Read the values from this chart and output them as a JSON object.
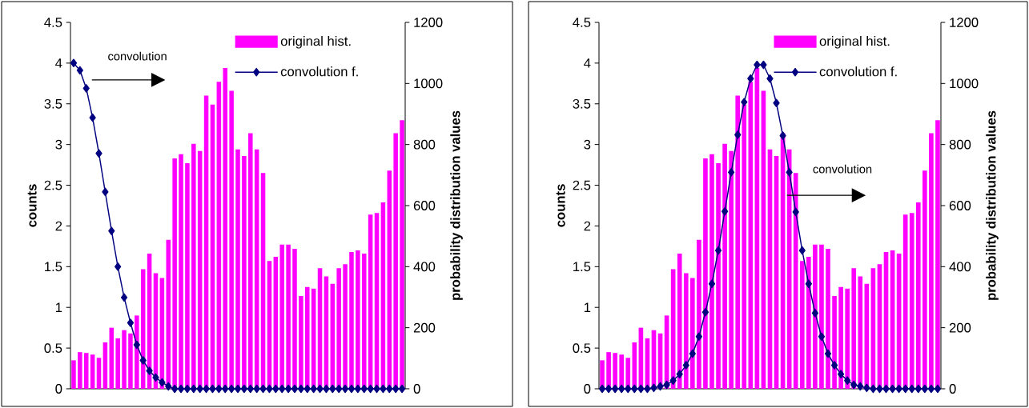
{
  "chart_data": [
    {
      "type": "bar",
      "categories": [
        null,
        null,
        null,
        null,
        null,
        null,
        null,
        null,
        null,
        null,
        null,
        null,
        null,
        null,
        null,
        null,
        null,
        null,
        null,
        null,
        null,
        null,
        null,
        null,
        null,
        null,
        null,
        null,
        null,
        null,
        null,
        null,
        null,
        null,
        null,
        null,
        null,
        null,
        null,
        null,
        null,
        null,
        null,
        null,
        null,
        null,
        null,
        null,
        null,
        null,
        null,
        null,
        null
      ],
      "ylabel": "counts",
      "y2label": "probability distribution values",
      "ylim": [
        0,
        4.5
      ],
      "yticks": [
        0,
        0.5,
        1,
        1.5,
        2,
        2.5,
        3,
        3.5,
        4,
        4.5
      ],
      "y2lim": [
        0,
        1200
      ],
      "y2ticks": [
        0,
        200,
        400,
        600,
        800,
        1000,
        1200
      ],
      "legend": "top right",
      "marker": "diamond",
      "annotations": [
        "convolution"
      ],
      "series": [
        {
          "name": "original hist.",
          "color": "#ff00ff",
          "values": [
            0.35,
            0.45,
            0.44,
            0.42,
            0.38,
            0.57,
            0.75,
            0.62,
            0.72,
            0.68,
            0.9,
            1.47,
            1.66,
            1.42,
            1.36,
            1.83,
            2.83,
            2.88,
            2.77,
            3.01,
            2.92,
            3.6,
            3.49,
            3.77,
            3.94,
            3.66,
            2.94,
            2.86,
            3.14,
            2.94,
            2.65,
            1.57,
            1.62,
            1.77,
            1.77,
            1.72,
            1.14,
            1.25,
            1.23,
            1.48,
            1.38,
            1.29,
            1.48,
            1.53,
            1.68,
            1.7,
            1.66,
            2.14,
            2.16,
            2.29,
            2.68,
            3.14,
            3.3
          ]
        },
        {
          "name": "convolution f.",
          "type": "line",
          "axis": "y2",
          "color": "#000080",
          "values": [
            1067,
            1043,
            984,
            888,
            771,
            645,
            517,
            400,
            299,
            216,
            144,
            93,
            59,
            37,
            21,
            8,
            0,
            0,
            0,
            0,
            0,
            0,
            0,
            0,
            0,
            0,
            0,
            0,
            0,
            0,
            0,
            0,
            0,
            0,
            0,
            0,
            0,
            0,
            0,
            0,
            0,
            0,
            0,
            0,
            0,
            0,
            0,
            0,
            0,
            0,
            0,
            0,
            0
          ]
        }
      ]
    },
    {
      "type": "bar",
      "categories": [
        null,
        null,
        null,
        null,
        null,
        null,
        null,
        null,
        null,
        null,
        null,
        null,
        null,
        null,
        null,
        null,
        null,
        null,
        null,
        null,
        null,
        null,
        null,
        null,
        null,
        null,
        null,
        null,
        null,
        null,
        null,
        null,
        null,
        null,
        null,
        null,
        null,
        null,
        null,
        null,
        null,
        null,
        null,
        null,
        null,
        null,
        null,
        null,
        null,
        null,
        null,
        null,
        null
      ],
      "ylabel": "counts",
      "y2label": "probability distribution values",
      "ylim": [
        0,
        4.5
      ],
      "yticks": [
        0,
        0.5,
        1,
        1.5,
        2,
        2.5,
        3,
        3.5,
        4,
        4.5
      ],
      "y2lim": [
        0,
        1200
      ],
      "y2ticks": [
        0,
        200,
        400,
        600,
        800,
        1000,
        1200
      ],
      "legend": "top right",
      "marker": "diamond",
      "annotations": [
        "convolution"
      ],
      "series": [
        {
          "name": "original hist.",
          "color": "#ff00ff",
          "values": [
            0.35,
            0.45,
            0.44,
            0.42,
            0.38,
            0.57,
            0.75,
            0.62,
            0.72,
            0.68,
            0.9,
            1.47,
            1.66,
            1.42,
            1.36,
            1.83,
            2.83,
            2.88,
            2.77,
            3.01,
            2.92,
            3.6,
            3.49,
            3.77,
            3.94,
            3.66,
            2.94,
            2.86,
            3.14,
            2.94,
            2.65,
            1.57,
            1.62,
            1.77,
            1.77,
            1.72,
            1.14,
            1.25,
            1.23,
            1.48,
            1.38,
            1.29,
            1.48,
            1.53,
            1.68,
            1.7,
            1.66,
            2.14,
            2.16,
            2.29,
            2.68,
            3.14,
            3.3
          ]
        },
        {
          "name": "convolution f.",
          "type": "line",
          "axis": "y2",
          "color": "#000080",
          "values": [
            0,
            0,
            0,
            0,
            0,
            0,
            0,
            0,
            3,
            8,
            13,
            27,
            48,
            77,
            115,
            171,
            251,
            344,
            453,
            581,
            709,
            832,
            939,
            1016,
            1061,
            1061,
            1016,
            936,
            829,
            709,
            579,
            453,
            344,
            248,
            171,
            115,
            77,
            48,
            27,
            13,
            8,
            3,
            0,
            0,
            0,
            0,
            0,
            0,
            0,
            0,
            0,
            0,
            0
          ]
        }
      ]
    }
  ]
}
